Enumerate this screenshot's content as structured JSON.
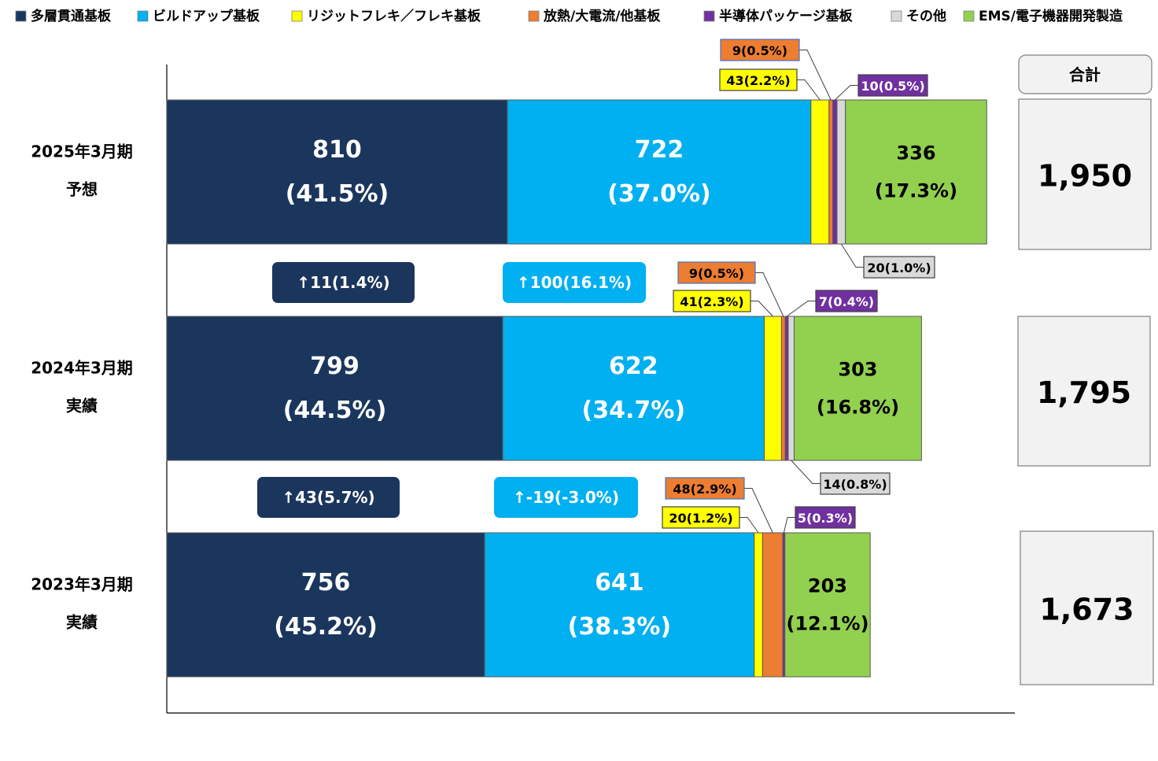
{
  "chart_data": {
    "type": "bar",
    "orientation": "horizontal",
    "stacked": true,
    "legend_position": "top",
    "grid": false,
    "xlim": [
      0,
      2050
    ],
    "title": "",
    "xlabel": "",
    "ylabel": "",
    "categories": [
      {
        "line1": "2025年3月期",
        "line2": "予想"
      },
      {
        "line1": "2024年3月期",
        "line2": "実績"
      },
      {
        "line1": "2023年3月期",
        "line2": "実績"
      }
    ],
    "series": [
      {
        "name": "多層貫通基板",
        "color": "#1b365d",
        "values": [
          810,
          799,
          756
        ],
        "shares": [
          "(41.5%)",
          "(44.5%)",
          "(45.2%)"
        ]
      },
      {
        "name": "ビルドアップ基板",
        "color": "#00b0f0",
        "values": [
          722,
          622,
          641
        ],
        "shares": [
          "(37.0%)",
          "(34.7%)",
          "(38.3%)"
        ]
      },
      {
        "name": "リジットフレキ／フレキ基板",
        "color": "#ffff00",
        "values": [
          43,
          41,
          20
        ],
        "labels": [
          "43(2.2%)",
          "41(2.3%)",
          "20(1.2%)"
        ]
      },
      {
        "name": "放熱/大電流/他基板",
        "color": "#ed7d31",
        "values": [
          9,
          9,
          48
        ],
        "labels": [
          "9(0.5%)",
          "9(0.5%)",
          "48(2.9%)"
        ]
      },
      {
        "name": "半導体パッケージ基板",
        "color": "#7030a0",
        "values": [
          10,
          7,
          5
        ],
        "labels": [
          "10(0.5%)",
          "7(0.4%)",
          "5(0.3%)"
        ]
      },
      {
        "name": "その他",
        "color": "#d9d9d9",
        "values": [
          20,
          14,
          0
        ],
        "labels": [
          "20(1.0%)",
          "14(0.8%)",
          ""
        ]
      },
      {
        "name": "EMS/電子機器開発製造",
        "color": "#92d050",
        "values": [
          336,
          303,
          203
        ],
        "shares": [
          "(17.3%)",
          "(16.8%)",
          "(12.1%)"
        ]
      }
    ],
    "totals_header": "合計",
    "totals": [
      "1,950",
      "1,795",
      "1,673"
    ],
    "changes": [
      {
        "series": "多層貫通基板",
        "text": "↑11(1.4%)",
        "color": "#1b365d"
      },
      {
        "series": "ビルドアップ基板",
        "text": "↑100(16.1%)",
        "color": "#00b0f0"
      },
      {
        "series": "多層貫通基板",
        "text": "↑43(5.7%)",
        "color": "#1b365d"
      },
      {
        "series": "ビルドアップ基板",
        "text": "↑-19(-3.0%)",
        "color": "#00b0f0"
      }
    ]
  }
}
